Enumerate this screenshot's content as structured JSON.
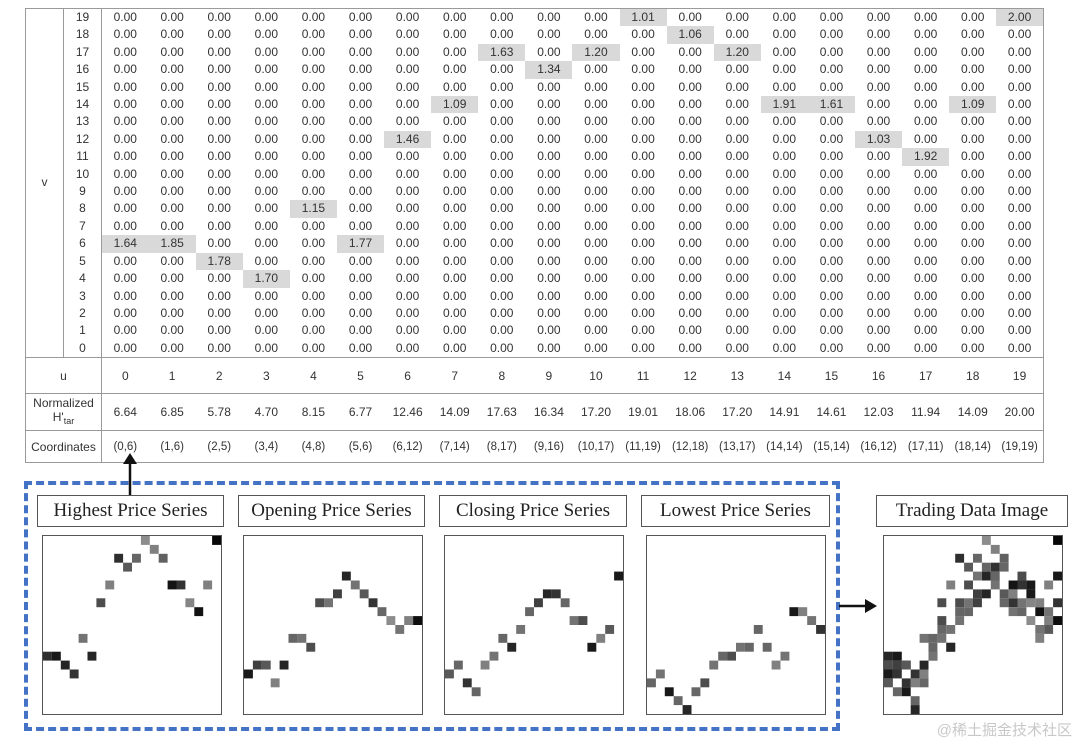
{
  "matrix": {
    "v_axis_label": "v",
    "u_axis_label": "u",
    "normalized_label": "Normalized",
    "normalized_sub_base": "H'",
    "normalized_sub_index": "tar",
    "coordinates_label": "Coordinates",
    "zero_value": "0.00",
    "v_labels": [
      "19",
      "18",
      "17",
      "16",
      "15",
      "14",
      "13",
      "12",
      "11",
      "10",
      "9",
      "8",
      "7",
      "6",
      "5",
      "4",
      "3",
      "2",
      "1",
      "0"
    ],
    "u_labels": [
      "0",
      "1",
      "2",
      "3",
      "4",
      "5",
      "6",
      "7",
      "8",
      "9",
      "10",
      "11",
      "12",
      "13",
      "14",
      "15",
      "16",
      "17",
      "18",
      "19"
    ],
    "highlights": [
      {
        "u": 0,
        "v": 6,
        "value": "1.64"
      },
      {
        "u": 1,
        "v": 6,
        "value": "1.85"
      },
      {
        "u": 2,
        "v": 5,
        "value": "1.78"
      },
      {
        "u": 3,
        "v": 4,
        "value": "1.70"
      },
      {
        "u": 4,
        "v": 8,
        "value": "1.15"
      },
      {
        "u": 5,
        "v": 6,
        "value": "1.77"
      },
      {
        "u": 6,
        "v": 12,
        "value": "1.46"
      },
      {
        "u": 7,
        "v": 14,
        "value": "1.09"
      },
      {
        "u": 8,
        "v": 17,
        "value": "1.63"
      },
      {
        "u": 9,
        "v": 16,
        "value": "1.34"
      },
      {
        "u": 10,
        "v": 17,
        "value": "1.20"
      },
      {
        "u": 11,
        "v": 19,
        "value": "1.01"
      },
      {
        "u": 12,
        "v": 18,
        "value": "1.06"
      },
      {
        "u": 13,
        "v": 17,
        "value": "1.20"
      },
      {
        "u": 14,
        "v": 14,
        "value": "1.91"
      },
      {
        "u": 15,
        "v": 14,
        "value": "1.61"
      },
      {
        "u": 16,
        "v": 12,
        "value": "1.03"
      },
      {
        "u": 17,
        "v": 11,
        "value": "1.92"
      },
      {
        "u": 18,
        "v": 14,
        "value": "1.09"
      },
      {
        "u": 19,
        "v": 19,
        "value": "2.00"
      }
    ],
    "normalized_values": [
      "6.64",
      "6.85",
      "5.78",
      "4.70",
      "8.15",
      "6.77",
      "12.46",
      "14.09",
      "17.63",
      "16.34",
      "17.20",
      "19.01",
      "18.06",
      "17.20",
      "14.91",
      "14.61",
      "12.03",
      "11.94",
      "14.09",
      "20.00"
    ],
    "coordinates": [
      "(0,6)",
      "(1,6)",
      "(2,5)",
      "(3,4)",
      "(4,8)",
      "(5,6)",
      "(6,12)",
      "(7,14)",
      "(8,17)",
      "(9,16)",
      "(10,17)",
      "(11,19)",
      "(12,18)",
      "(13,17)",
      "(14,14)",
      "(15,14)",
      "(16,12)",
      "(17,11)",
      "(18,14)",
      "(19,19)"
    ]
  },
  "series": {
    "highest": {
      "title": "Highest Price Series",
      "cells": [
        [
          0,
          6,
          0.82
        ],
        [
          1,
          6,
          0.9
        ],
        [
          2,
          5,
          0.86
        ],
        [
          3,
          4,
          0.8
        ],
        [
          4,
          8,
          0.55
        ],
        [
          5,
          6,
          0.85
        ],
        [
          6,
          12,
          0.7
        ],
        [
          7,
          14,
          0.5
        ],
        [
          8,
          17,
          0.82
        ],
        [
          9,
          16,
          0.65
        ],
        [
          10,
          17,
          0.6
        ],
        [
          11,
          19,
          0.45
        ],
        [
          12,
          18,
          0.5
        ],
        [
          13,
          17,
          0.62
        ],
        [
          14,
          14,
          0.92
        ],
        [
          15,
          14,
          0.8
        ],
        [
          16,
          12,
          0.48
        ],
        [
          17,
          11,
          0.93
        ],
        [
          18,
          14,
          0.5
        ],
        [
          19,
          19,
          0.97
        ]
      ]
    },
    "opening": {
      "title": "Opening Price Series",
      "cells": [
        [
          0,
          4,
          0.9
        ],
        [
          1,
          5,
          0.75
        ],
        [
          2,
          5,
          0.65
        ],
        [
          3,
          3,
          0.5
        ],
        [
          4,
          5,
          0.85
        ],
        [
          5,
          8,
          0.6
        ],
        [
          6,
          8,
          0.55
        ],
        [
          7,
          7,
          0.7
        ],
        [
          8,
          12,
          0.7
        ],
        [
          9,
          12,
          0.55
        ],
        [
          10,
          13,
          0.75
        ],
        [
          11,
          15,
          0.85
        ],
        [
          12,
          14,
          0.55
        ],
        [
          13,
          13,
          0.65
        ],
        [
          14,
          12,
          0.8
        ],
        [
          15,
          11,
          0.6
        ],
        [
          16,
          10,
          0.45
        ],
        [
          17,
          9,
          0.55
        ],
        [
          18,
          10,
          0.5
        ],
        [
          19,
          10,
          0.95
        ]
      ]
    },
    "closing": {
      "title": "Closing Price Series",
      "cells": [
        [
          0,
          4,
          0.65
        ],
        [
          1,
          5,
          0.6
        ],
        [
          2,
          3,
          0.8
        ],
        [
          3,
          2,
          0.6
        ],
        [
          4,
          5,
          0.5
        ],
        [
          5,
          6,
          0.55
        ],
        [
          6,
          8,
          0.6
        ],
        [
          7,
          7,
          0.85
        ],
        [
          8,
          9,
          0.55
        ],
        [
          9,
          11,
          0.6
        ],
        [
          10,
          12,
          0.75
        ],
        [
          11,
          13,
          0.85
        ],
        [
          12,
          13,
          0.8
        ],
        [
          13,
          12,
          0.6
        ],
        [
          14,
          10,
          0.55
        ],
        [
          15,
          10,
          0.7
        ],
        [
          16,
          7,
          0.9
        ],
        [
          17,
          8,
          0.5
        ],
        [
          18,
          9,
          0.65
        ],
        [
          19,
          15,
          0.9
        ]
      ]
    },
    "lowest": {
      "title": "Lowest Price Series",
      "cells": [
        [
          0,
          3,
          0.6
        ],
        [
          1,
          4,
          0.55
        ],
        [
          2,
          2,
          0.9
        ],
        [
          3,
          1,
          0.6
        ],
        [
          4,
          0,
          0.85
        ],
        [
          5,
          2,
          0.6
        ],
        [
          6,
          3,
          0.7
        ],
        [
          7,
          5,
          0.55
        ],
        [
          8,
          6,
          0.6
        ],
        [
          9,
          6,
          0.7
        ],
        [
          10,
          7,
          0.55
        ],
        [
          11,
          7,
          0.6
        ],
        [
          12,
          9,
          0.6
        ],
        [
          13,
          7,
          0.6
        ],
        [
          14,
          5,
          0.5
        ],
        [
          15,
          6,
          0.55
        ],
        [
          16,
          11,
          0.9
        ],
        [
          17,
          11,
          0.5
        ],
        [
          18,
          10,
          0.55
        ],
        [
          19,
          9,
          0.8
        ]
      ]
    },
    "arrow_to_matrix": "up-arrow",
    "arrow_to_result": "right-arrow"
  },
  "result": {
    "title": "Trading Data Image",
    "cells": [
      [
        0,
        6,
        0.85
      ],
      [
        1,
        6,
        0.9
      ],
      [
        2,
        5,
        0.8
      ],
      [
        3,
        4,
        0.8
      ],
      [
        4,
        8,
        0.55
      ],
      [
        5,
        6,
        0.85
      ],
      [
        6,
        12,
        0.7
      ],
      [
        7,
        14,
        0.5
      ],
      [
        8,
        17,
        0.82
      ],
      [
        9,
        16,
        0.65
      ],
      [
        10,
        17,
        0.6
      ],
      [
        11,
        19,
        0.45
      ],
      [
        12,
        18,
        0.5
      ],
      [
        13,
        17,
        0.62
      ],
      [
        14,
        14,
        0.92
      ],
      [
        15,
        14,
        0.8
      ],
      [
        16,
        12,
        0.48
      ],
      [
        17,
        11,
        0.93
      ],
      [
        18,
        14,
        0.5
      ],
      [
        19,
        19,
        0.97
      ],
      [
        0,
        4,
        0.9
      ],
      [
        1,
        5,
        0.75
      ],
      [
        2,
        5,
        0.65
      ],
      [
        3,
        3,
        0.5
      ],
      [
        4,
        5,
        0.85
      ],
      [
        5,
        8,
        0.6
      ],
      [
        6,
        8,
        0.55
      ],
      [
        7,
        7,
        0.7
      ],
      [
        8,
        12,
        0.7
      ],
      [
        9,
        12,
        0.55
      ],
      [
        10,
        13,
        0.75
      ],
      [
        11,
        15,
        0.85
      ],
      [
        12,
        14,
        0.55
      ],
      [
        13,
        13,
        0.65
      ],
      [
        14,
        12,
        0.8
      ],
      [
        15,
        11,
        0.6
      ],
      [
        16,
        10,
        0.45
      ],
      [
        17,
        9,
        0.55
      ],
      [
        18,
        10,
        0.5
      ],
      [
        19,
        10,
        0.95
      ],
      [
        0,
        3,
        0.65
      ],
      [
        1,
        2,
        0.6
      ],
      [
        2,
        3,
        0.8
      ],
      [
        3,
        1,
        0.6
      ],
      [
        4,
        4,
        0.5
      ],
      [
        5,
        6,
        0.55
      ],
      [
        6,
        9,
        0.6
      ],
      [
        7,
        7,
        0.85
      ],
      [
        8,
        10,
        0.55
      ],
      [
        9,
        11,
        0.6
      ],
      [
        10,
        12,
        0.75
      ],
      [
        11,
        13,
        0.85
      ],
      [
        12,
        16,
        0.8
      ],
      [
        13,
        12,
        0.6
      ],
      [
        14,
        11,
        0.55
      ],
      [
        15,
        15,
        0.7
      ],
      [
        16,
        13,
        0.9
      ],
      [
        17,
        8,
        0.5
      ],
      [
        18,
        9,
        0.65
      ],
      [
        19,
        15,
        0.9
      ],
      [
        0,
        5,
        0.7
      ],
      [
        1,
        4,
        0.8
      ],
      [
        2,
        2,
        0.9
      ],
      [
        3,
        0,
        0.85
      ],
      [
        4,
        3,
        0.6
      ],
      [
        5,
        7,
        0.6
      ],
      [
        6,
        10,
        0.7
      ],
      [
        7,
        9,
        0.55
      ],
      [
        8,
        11,
        0.6
      ],
      [
        9,
        14,
        0.7
      ],
      [
        10,
        15,
        0.55
      ],
      [
        11,
        16,
        0.6
      ],
      [
        12,
        15,
        0.6
      ],
      [
        13,
        16,
        0.6
      ],
      [
        14,
        13,
        0.5
      ],
      [
        15,
        12,
        0.55
      ],
      [
        16,
        14,
        0.9
      ],
      [
        17,
        12,
        0.5
      ],
      [
        18,
        11,
        0.55
      ],
      [
        19,
        12,
        0.8
      ]
    ]
  },
  "watermark": "@稀土掘金技术社区"
}
